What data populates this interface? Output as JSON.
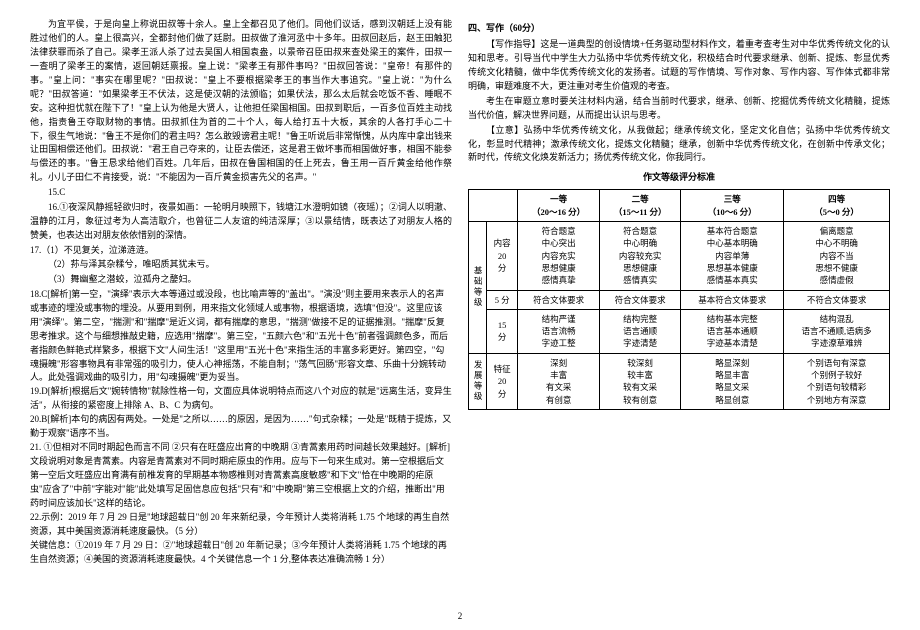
{
  "left": {
    "p1": "为宜平侯，于是向皇上称说田叔等十余人。皇上全都召见了他们。同他们议话，感到汉朝廷上没有能胜过他们的人。皇上很高兴，全都封他们做了廷尉。田叔做了淮河丞中十多年。田叔回赵后，赵王田触犯法律获罪而杀了自己。梁孝王派人杀了过去吴国人相国袁盎，以景帝召臣田叔来查处梁王的案件，田叔一一查明了梁孝王的案情，返回朝廷禀报。皇上说：\"梁孝王有那件事吗？\"田叔回答说：\"皇帝！有那件的事。\"皇上问：\"事实在哪里呢？\"田叔说：\"皇上不要根据梁孝王的事当作大事追究。\"皇上说：\"为什么呢？\"田叔答道：\"如果梁孝王不伏法，这是使汉朝的法颁临；如果伏法，那么太后就会吃饭不香、睡眠不安。这种担忧就在陛下了！\"皇上认为他是大贤人，让他担任梁国相国。田叔到职后，一百多位百姓主动找他，指责鲁王夺取财物的事情。田叔抓住为首的二十个人，每人给打五十大板，其余的人各打手心二十下，很生气地说：\"鲁王不是你们的君主吗？怎么敢毁谤君主呢！\"鲁王听说后非常惭愧，从内库中拿出钱来让田国相偿还他们。田叔说：\"君王自己夺来的，让臣去偿还，这是君王做坏事而相国做好事，相国不能参与偿还的事。\"鲁王恳求给他们百姓。几年后，田叔在鲁国相国的任上死去，鲁王用一百斤黄金给他作祭礼。小儿子田仁不肯接受，说：\"不能因为一百斤黄金损害先父的名声。\"",
    "p2": "15.C",
    "p3": "16.①夜深风静摇轻欲归时，夜景如画：一轮明月映照下，钱塘江水澄明如镜（夜瑶）；②词人以明澈、温静的江月，象征过考为人高洁取介，也曾征二人友谊的纯洁深厚；③以景结情，既表达了对朋友人格的赞美，也表达出对朋友依依惜别的深情。",
    "p4": "17.（1）不见复关，泣涕涟涟。",
    "p5": "（2）荪与泽其杂糅兮，唯昭质其犹未亏。",
    "p6": "（3）舞幽壑之潜蛟，泣孤舟之嫠妇。",
    "p7": "18.C[解析]第一空，\"演绎\"表示大本等通过或没段，也比喻声等的\"盖出\"。\"演没\"则主要用来表示人的名声或事迹的埋没或事物的埋没。从要用到例，用来指文化领域人或事物，根据语境，选填\"但没\"。这里应该用\"演绎\"。第二空，\"揣测\"和\"揣摩\"是近义词，都有揣摩的意思，\"揣测\"做接不足的证据推测。\"揣摩\"反复思考推求。这个与细想推敲史籍，应选用\"揣摩\"。第三空，\"五颜六色\"和\"五光十色\"前者强调颜色多，而后者指颜色鲜艳式样繁多，根据下文\"人间生活！\"这里用\"五光十色\"来指生活的丰富多彩更好。第四空，\"勾魂摄魄\"形容事物具有非常强的吸引力，使人心神摇荡，不能自制；\"荡气回肠\"形容文章、乐曲十分婉转动人。此处强调戏曲的吸引力，用\"勾魂摄魄\"更为妥当。",
    "p8": "19.D[解析]根据后文\"婉转情物\"就除性格一句，文面应具体说明特点而这八个对应的就是\"远离生活，变异生活\"，从衔接的紧密度上排除 A、B、C 为病句。",
    "p9": "20.B[解析]本句的病因有两处。一处是\"之所以……的原因，是因为……\"句式杂糅；一处是\"既精于提炼，又勤于观察\"语序不当。",
    "p10": "21. ①但相对不同时期起色而言不同  ②只有在旺盛应出育的中晚期  ③青蒿素用药时间越长效果越好。[解析]文段说明对象是青蒿素。内容是青蒿素对不同时期疟原虫的作用。应与下一句来生成对。第一空根据后文第一空后文旺盛应出育满有前椎发育的早期基本物感椎则对青蒿素高度敏感\"和下文\"恰在中晚期的疟原虫\"应含了\"中前\"字能对\"能\"此处填写足固信息应包括\"只有\"和\"中晚期\"第三空根据上文的介绍，推断出\"用药时间应该加长\"这样的结论。",
    "p11": "22.示例：2019 年 7 月 29 日是\"地球超载日\"创 20 年来新纪录，今年预计人类将消耗 1.75 个地球的再生自然资源，其中美国资源消耗速度最快。（5 分）",
    "p12": "关键信息：①2019 年 7 月 29 日：②\"地球超载日\"创 20 年新记录；③今年预计人类将消耗 1.75 个地球的再生自然资源；④美国的资源消耗速度最快。4 个关键信息一个 1 分,整体表达准确流畅 1 分）"
  },
  "right": {
    "title": "四、写作（60分）",
    "p1": "【写作指导】这是一道典型的创设情境+任务驱动型材料作文，着重考查考生对中华优秀传统文化的认知和思考。引导当代中学生大力弘扬中华优秀传统文化，积极结合时代要求继承、创新、提炼、彰显优秀传统文化精髓，做中华优秀传统文化的发扬者。试题的写作情境、写作对象、写作内容、写作体式都非常明确，审题难度不大，更注重对考生价值观的考查。",
    "p2": "考生在审题立意时要关注材料内涵，结合当前时代要求，继承、创新、挖掘优秀传统文化精髓，提炼当代价值，解决世界问题，从而提出认识与思考。",
    "p3": "【立意】弘扬中华优秀传统文化，从我做起；继承传统文化，坚定文化自信；弘扬中华优秀传统文化，彰显时代精神；激承传统文化，提炼文化精髓；继承，创新中华优秀传统文化，在创新中传承文化；新时代，传统文化焕发新活力；扬优秀传统文化，你我同行。",
    "tableTitle": "作文等级评分标准",
    "headers": [
      "",
      "",
      "一等\n（20～16 分）",
      "二等\n（15～11 分）",
      "三等\n（10～6 分）",
      "四等\n（5～0 分）"
    ],
    "rowGroup1": "基础等级",
    "row1": {
      "label": "内容\n20\n分",
      "c1": "符合题意\n中心突出\n内容充实\n思想健康\n感情真挚",
      "c2": "符合题意\n中心明确\n内容较充实\n思想健康\n感情真实",
      "c3": "基本符合题意\n中心基本明确\n内容单薄\n思想基本健康\n感情基本真实",
      "c4": "偏离题意\n中心不明确\n内容不当\n思想不健康\n感情虚假"
    },
    "row2a": {
      "label": "5 分",
      "c1": "符合文体要求",
      "c2": "符合文体要求",
      "c3": "基本符合文体要求",
      "c4": "不符合文体要求"
    },
    "row2label": "表达\n20\n分",
    "row2b": {
      "label": "15\n分",
      "c1": "结构严谨\n语言流畅\n字迹工整",
      "c2": "结构完整\n语言通顺\n字迹清楚",
      "c3": "结构基本完整\n语言基本通顺\n字迹基本清楚",
      "c4": "结构混乱\n语言不通顺,语病多\n字迹潦草难辨"
    },
    "rowGroup2": "发展等级",
    "row3": {
      "label": "特征\n20\n分",
      "c1": "深刻\n丰富\n有文采\n有创意",
      "c2": "较深刻\n较丰富\n较有文采\n较有创意",
      "c3": "略显深刻\n略显丰富\n略显文采\n略显创意",
      "c4": "个别语句有深意\n个别例子较好\n个别语句较精彩\n个别地方有深意"
    }
  },
  "pageNum": "2"
}
